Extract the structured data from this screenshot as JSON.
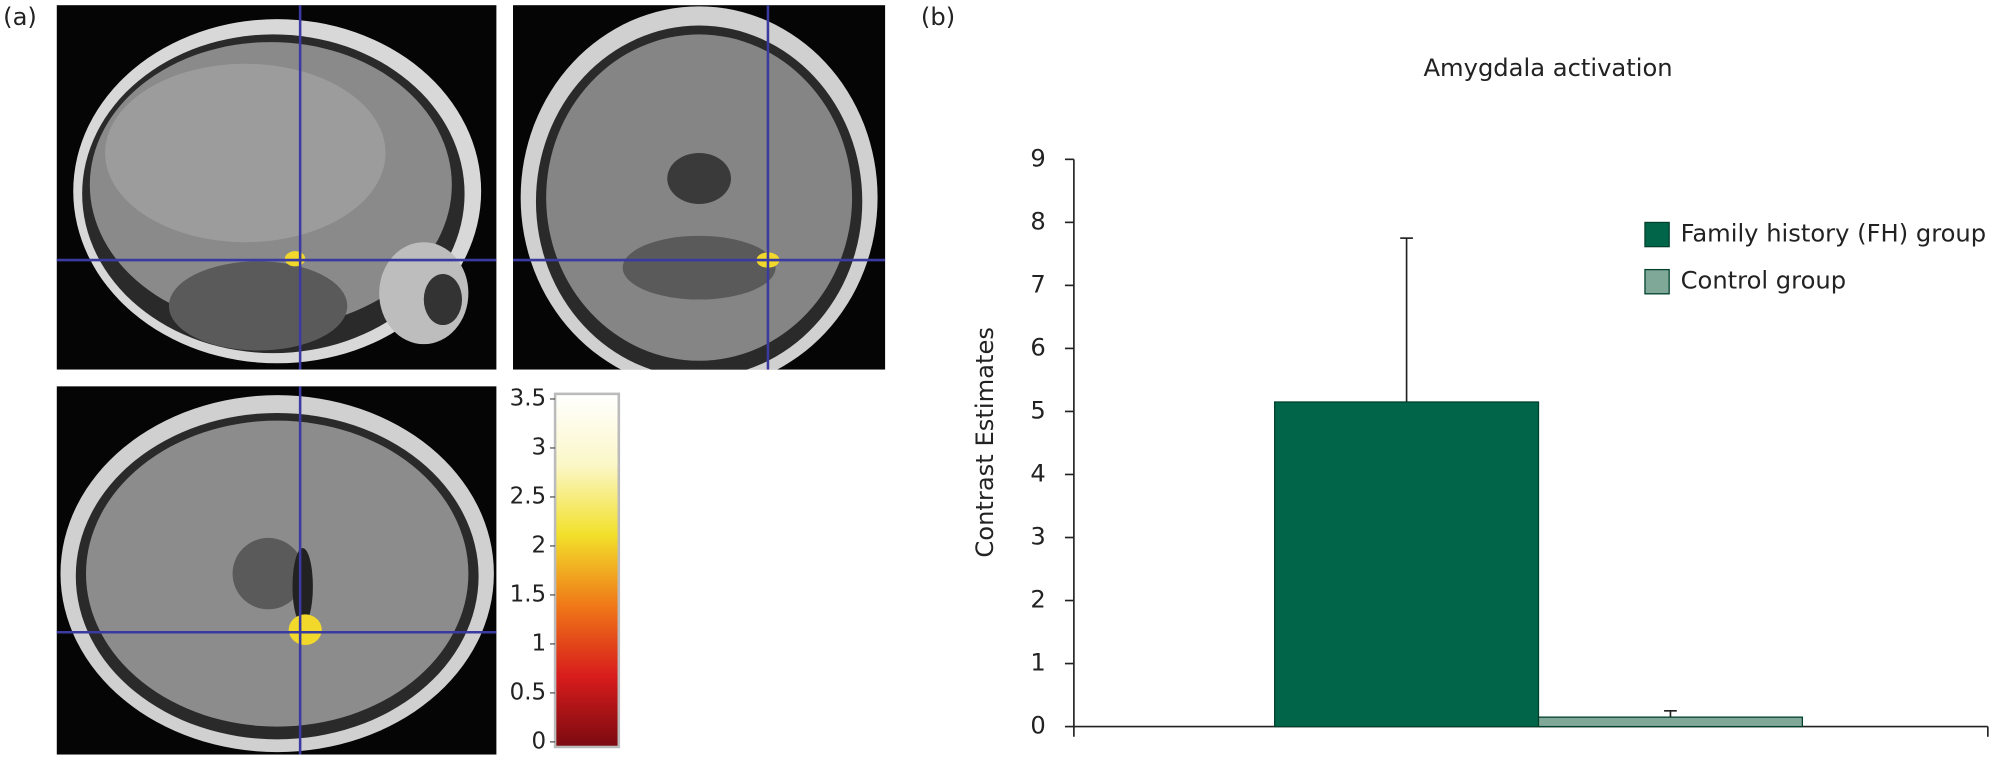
{
  "chart_data": [
    {
      "type": "colorbar",
      "panel": "(a)",
      "ylim": [
        0,
        3.5
      ],
      "yticks": [
        0,
        0.5,
        1,
        1.5,
        2,
        2.5,
        3,
        3.5
      ],
      "colormap": [
        "#7a0a10",
        "#d81c1c",
        "#f07818",
        "#f2e02a",
        "#fbf7c8",
        "#ffffff"
      ]
    },
    {
      "type": "bar",
      "panel": "(b)",
      "title": "Amygdala activation",
      "ylabel": "Contrast Estimates",
      "categories": [
        null
      ],
      "ylim": [
        0,
        9
      ],
      "yticks": [
        0,
        1,
        2,
        3,
        4,
        5,
        6,
        7,
        8,
        9
      ],
      "legend": "upper right",
      "series": [
        {
          "name": "Family history (FH) group",
          "color": "#006549",
          "values": [
            5.15
          ],
          "errors": [
            2.6
          ]
        },
        {
          "name": "Control group",
          "color": "#7fa898",
          "values": [
            0.15
          ],
          "errors": [
            0.1
          ]
        }
      ]
    }
  ]
}
